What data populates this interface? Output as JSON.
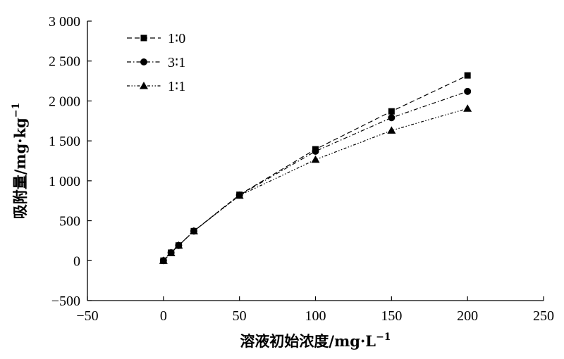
{
  "chart_data": {
    "type": "line",
    "xlabel": "溶液初始浓度/mg·L",
    "xlabel_sup": "−1",
    "ylabel": "吸附量/mg·kg",
    "ylabel_sup": "−1",
    "xlim": [
      -50,
      250
    ],
    "ylim": [
      -500,
      3000
    ],
    "x_ticks": [
      -50,
      0,
      50,
      100,
      150,
      200,
      250
    ],
    "x_tick_labels": [
      "−50",
      "0",
      "50",
      "100",
      "150",
      "200",
      "250"
    ],
    "y_ticks": [
      -500,
      0,
      500,
      1000,
      1500,
      2000,
      2500,
      3000
    ],
    "y_tick_labels": [
      "−500",
      "0",
      "500",
      "1 000",
      "1 500",
      "2 000",
      "2 500",
      "3 000"
    ],
    "grid": false,
    "legend_position": "top-left",
    "series": [
      {
        "name": "1∶0",
        "marker": "square",
        "line_style": "dashed",
        "x": [
          0,
          5,
          10,
          20,
          50,
          100,
          150,
          200
        ],
        "y": [
          0,
          100,
          190,
          370,
          825,
          1395,
          1870,
          2320
        ]
      },
      {
        "name": "3∶1",
        "marker": "circle",
        "line_style": "dash-dot",
        "x": [
          0,
          5,
          10,
          20,
          50,
          100,
          150,
          200
        ],
        "y": [
          0,
          100,
          190,
          370,
          820,
          1370,
          1790,
          2120
        ]
      },
      {
        "name": "1∶1",
        "marker": "triangle",
        "line_style": "dash-dot-dot",
        "x": [
          0,
          5,
          10,
          20,
          50,
          100,
          150,
          200
        ],
        "y": [
          0,
          95,
          190,
          370,
          815,
          1265,
          1630,
          1905
        ]
      }
    ]
  }
}
